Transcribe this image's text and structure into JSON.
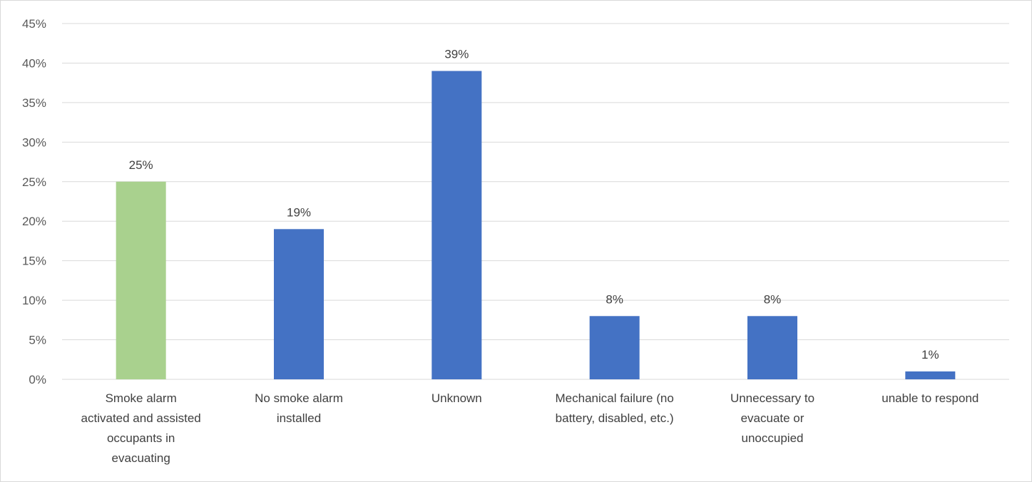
{
  "chart_data": {
    "type": "bar",
    "title": "",
    "xlabel": "",
    "ylabel": "",
    "ylim": [
      0,
      45
    ],
    "y_ticks": [
      "0%",
      "5%",
      "10%",
      "15%",
      "20%",
      "25%",
      "30%",
      "35%",
      "40%",
      "45%"
    ],
    "y_tick_values": [
      0,
      5,
      10,
      15,
      20,
      25,
      30,
      35,
      40,
      45
    ],
    "grid": true,
    "legend": "none",
    "categories": [
      [
        "Smoke alarm",
        "activated and assisted",
        "occupants in",
        "evacuating"
      ],
      [
        "No smoke alarm",
        "installed"
      ],
      [
        "Unknown"
      ],
      [
        "Mechanical failure (no",
        "battery, disabled, etc.)"
      ],
      [
        "Unnecessary to",
        "evacuate or",
        "unoccupied"
      ],
      [
        "unable to respond"
      ]
    ],
    "values": [
      25,
      19,
      39,
      8,
      8,
      1
    ],
    "data_labels": [
      "25%",
      "19%",
      "39%",
      "8%",
      "8%",
      "1%"
    ],
    "bar_colors": [
      "#A9D18E",
      "#4472C4",
      "#4472C4",
      "#4472C4",
      "#4472C4",
      "#4472C4"
    ],
    "gridline_color": "#d9d9d9"
  }
}
